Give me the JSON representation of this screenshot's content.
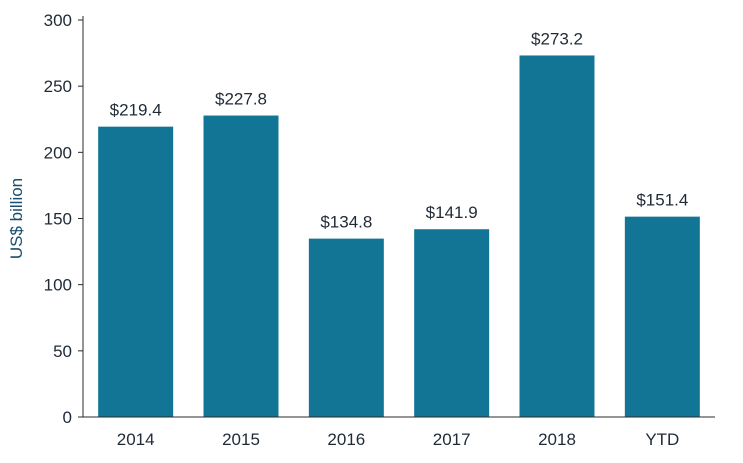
{
  "chart_data": {
    "type": "bar",
    "title": "",
    "xlabel": "",
    "ylabel": "US$ billion",
    "categories": [
      "2014",
      "2015",
      "2016",
      "2017",
      "2018",
      "YTD"
    ],
    "values": [
      219.4,
      227.8,
      134.8,
      141.9,
      273.2,
      151.4
    ],
    "data_labels": [
      "$219.4",
      "$227.8",
      "$134.8",
      "$141.9",
      "$273.2",
      "$151.4"
    ],
    "ylim": [
      0,
      300
    ],
    "yticks": [
      0,
      50,
      100,
      150,
      200,
      250,
      300
    ],
    "grid": false,
    "legend": "none",
    "colors": {
      "bar": "#137596",
      "axis": "#2b2b2b",
      "text": "#1f2a36",
      "ylabel": "#1a4e6e"
    }
  }
}
